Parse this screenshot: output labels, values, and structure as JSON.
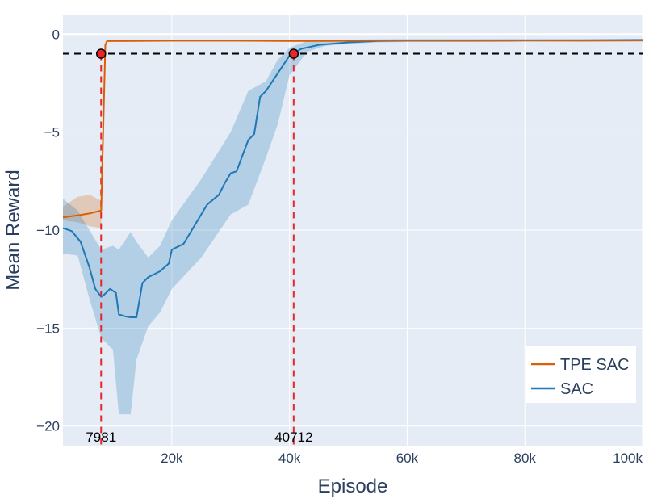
{
  "chart_data": {
    "type": "line",
    "title": "",
    "xlabel": "Episode",
    "ylabel": "Mean Reward",
    "xlim": [
      1500,
      100000
    ],
    "ylim": [
      -21,
      1
    ],
    "grid": true,
    "background": "#e5ecf6",
    "x_ticks": [
      {
        "value": 20000,
        "label": "20k"
      },
      {
        "value": 40000,
        "label": "40k"
      },
      {
        "value": 60000,
        "label": "60k"
      },
      {
        "value": 80000,
        "label": "80k"
      },
      {
        "value": 100000,
        "label": "100k"
      }
    ],
    "y_ticks": [
      {
        "value": 0,
        "label": "0"
      },
      {
        "value": -5,
        "label": "−5"
      },
      {
        "value": -10,
        "label": "−10"
      },
      {
        "value": -15,
        "label": "−15"
      },
      {
        "value": -20,
        "label": "−20"
      }
    ],
    "legend": {
      "placement": "bottom-right",
      "entries": [
        {
          "name": "TPE SAC",
          "color": "#d95f02"
        },
        {
          "name": "SAC",
          "color": "#1f77b4"
        }
      ]
    },
    "series": [
      {
        "name": "TPE SAC",
        "color": "#d95f02",
        "band_color": "rgba(217,95,2,0.25)",
        "x": [
          1500,
          4000,
          6000,
          8000,
          8700,
          9000,
          12000,
          20000,
          30000,
          40000,
          50000,
          60000,
          70000,
          80000,
          90000,
          100000
        ],
        "y": [
          -9.35,
          -9.25,
          -9.15,
          -9.0,
          -0.55,
          -0.35,
          -0.35,
          -0.33,
          -0.33,
          -0.35,
          -0.34,
          -0.32,
          -0.33,
          -0.32,
          -0.33,
          -0.32
        ],
        "band_x": [
          1500,
          4000,
          6000,
          8000,
          8700,
          9000,
          12000,
          100000
        ],
        "band_upper": [
          -8.8,
          -8.3,
          -8.2,
          -8.5,
          -0.4,
          -0.3,
          -0.3,
          -0.27
        ],
        "band_lower": [
          -9.5,
          -9.6,
          -9.8,
          -9.9,
          -0.6,
          -0.4,
          -0.4,
          -0.37
        ]
      },
      {
        "name": "SAC",
        "color": "#1f77b4",
        "band_color": "rgba(31,119,180,0.25)",
        "x": [
          1500,
          3000,
          4500,
          6000,
          7000,
          8000,
          8500,
          9500,
          10500,
          11000,
          12000,
          13000,
          14000,
          15000,
          16000,
          18000,
          19500,
          20000,
          22000,
          24000,
          26000,
          28000,
          29000,
          30000,
          31000,
          32000,
          33000,
          34000,
          35000,
          36000,
          38000,
          40000,
          42000,
          45000,
          50000,
          55000,
          60000,
          70000,
          80000,
          90000,
          100000
        ],
        "y": [
          -9.9,
          -10.05,
          -10.6,
          -11.9,
          -13.0,
          -13.4,
          -13.3,
          -13.0,
          -13.2,
          -14.3,
          -14.4,
          -14.45,
          -14.45,
          -12.7,
          -12.4,
          -12.1,
          -11.7,
          -11.0,
          -10.7,
          -9.7,
          -8.7,
          -8.2,
          -7.6,
          -7.1,
          -7.0,
          -6.2,
          -5.4,
          -5.1,
          -3.2,
          -2.9,
          -2.0,
          -1.1,
          -0.75,
          -0.55,
          -0.42,
          -0.35,
          -0.33,
          -0.33,
          -0.32,
          -0.32,
          -0.3
        ],
        "band_x": [
          1500,
          4000,
          6000,
          8000,
          10000,
          11000,
          13000,
          14000,
          16000,
          18000,
          20000,
          25000,
          30000,
          33000,
          36000,
          38000,
          40000,
          43000,
          46000,
          50000,
          55000,
          60000,
          70000,
          100000
        ],
        "band_upper": [
          -8.4,
          -9.0,
          -10.0,
          -11.0,
          -10.8,
          -11.0,
          -10.1,
          -10.6,
          -11.4,
          -10.8,
          -9.5,
          -7.4,
          -5.0,
          -2.9,
          -2.4,
          -1.3,
          -0.7,
          -0.35,
          -0.3,
          -0.28,
          -0.26,
          -0.25,
          -0.25,
          -0.24
        ],
        "band_lower": [
          -11.2,
          -11.3,
          -13.5,
          -15.5,
          -16.1,
          -19.4,
          -19.4,
          -16.6,
          -14.9,
          -14.2,
          -13.0,
          -11.4,
          -9.2,
          -8.7,
          -6.3,
          -4.6,
          -2.1,
          -0.9,
          -0.6,
          -0.5,
          -0.42,
          -0.4,
          -0.4,
          -0.38
        ]
      }
    ],
    "threshold": {
      "y": -1.0,
      "color": "#000000"
    },
    "markers": [
      {
        "x": 7981,
        "y": -1.0,
        "label": "7981"
      },
      {
        "x": 40712,
        "y": -1.0,
        "label": "40712"
      }
    ]
  }
}
